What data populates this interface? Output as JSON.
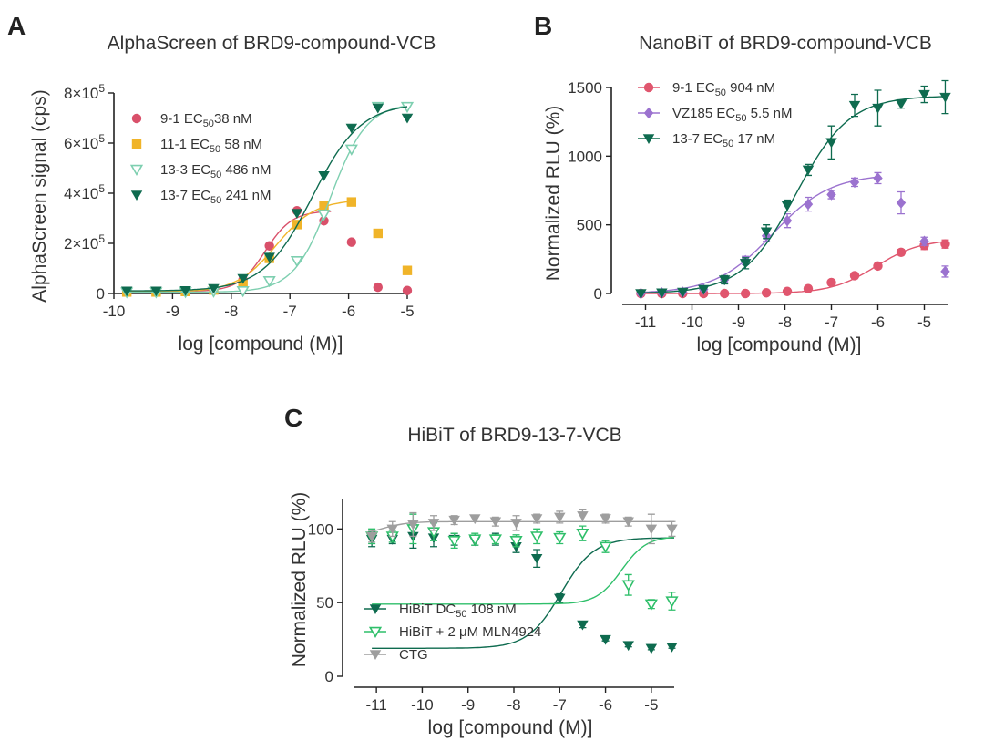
{
  "chart_data": [
    {
      "type": "scatter",
      "panel": "A",
      "title": "AlphaScreen of BRD9-compound-VCB",
      "xlabel": "log [compound (M)]",
      "ylabel": "AlphaScreen signal (cps)",
      "xlim": [
        -10,
        -5
      ],
      "ylim": [
        0,
        800000
      ],
      "xticks": [
        -10,
        -9,
        -8,
        -7,
        -6,
        -5
      ],
      "xtick_labels": [
        "-10",
        "-9",
        "-8",
        "-7",
        "-6",
        "-5"
      ],
      "yticks": [
        0,
        200000,
        400000,
        600000,
        800000
      ],
      "ytick_labels": [
        {
          "base": "0",
          "exp": ""
        },
        {
          "base": "2×10",
          "exp": "5"
        },
        {
          "base": "4×10",
          "exp": "5"
        },
        {
          "base": "6×10",
          "exp": "5"
        },
        {
          "base": "8×10",
          "exp": "5"
        }
      ],
      "grid": false,
      "legend_position": "top-left",
      "series": [
        {
          "name": "9-1 EC50 38 nM",
          "legend": {
            "pre": "9-1 EC",
            "sub": "50",
            "post": "38 nM"
          },
          "color": "#d9506a",
          "marker": "circle",
          "x": [
            -9.78,
            -9.28,
            -8.78,
            -8.3,
            -7.8,
            -7.35,
            -6.88,
            -6.42,
            -5.95,
            -5.5,
            -5.0
          ],
          "y": [
            8000,
            8000,
            10000,
            15000,
            55000,
            190000,
            330000,
            290000,
            205000,
            25000,
            12000
          ],
          "fit": {
            "bottom": 8000,
            "top": 330000,
            "logec50": -7.42,
            "hill": 1.9,
            "xmax": -6.3
          }
        },
        {
          "name": "11-1 EC50 58 nM",
          "legend": {
            "pre": "11-1 EC",
            "sub": "50",
            "post": " 58 nM"
          },
          "color": "#f0b429",
          "marker": "square",
          "x": [
            -9.78,
            -9.28,
            -8.78,
            -8.3,
            -7.8,
            -7.35,
            -6.88,
            -6.42,
            -5.95,
            -5.5,
            -5.0
          ],
          "y": [
            6000,
            6000,
            8000,
            14000,
            35000,
            140000,
            275000,
            350000,
            365000,
            240000,
            92000
          ],
          "fit": {
            "bottom": 6000,
            "top": 375000,
            "logec50": -7.24,
            "hill": 1.3,
            "xmax": -5.95
          }
        },
        {
          "name": "13-3 EC50 486 nM",
          "legend": {
            "pre": "13-3 EC",
            "sub": "50",
            "post": " 486 nM"
          },
          "color": "#7ecfb0",
          "marker": "triangle-down-open",
          "x": [
            -9.78,
            -9.28,
            -8.78,
            -8.3,
            -7.8,
            -7.35,
            -6.88,
            -6.42,
            -5.95,
            -5.5,
            -5.0
          ],
          "y": [
            5000,
            5000,
            6000,
            8000,
            10000,
            50000,
            130000,
            315000,
            575000,
            745000,
            745000
          ],
          "fit": {
            "bottom": 5000,
            "top": 760000,
            "logec50": -6.31,
            "hill": 1.4,
            "xmax": -5.0
          }
        },
        {
          "name": "13-7 EC50 241 nM",
          "legend": {
            "pre": "13-7 EC",
            "sub": "50",
            "post": " 241 nM"
          },
          "color": "#0e6b4f",
          "marker": "triangle-down",
          "x": [
            -9.78,
            -9.28,
            -8.78,
            -8.3,
            -7.8,
            -7.35,
            -6.88,
            -6.42,
            -5.95,
            -5.5,
            -5.0
          ],
          "y": [
            10000,
            10000,
            12000,
            20000,
            60000,
            145000,
            320000,
            470000,
            660000,
            740000,
            700000
          ],
          "fit": {
            "bottom": 10000,
            "top": 760000,
            "logec50": -6.62,
            "hill": 1.05,
            "xmax": -5.0
          }
        }
      ]
    },
    {
      "type": "scatter",
      "panel": "B",
      "title": "NanoBiT of BRD9-compound-VCB",
      "xlabel": "log [compound (M)]",
      "ylabel": "Normalized RLU (%)",
      "xlim": [
        -11.5,
        -4.5
      ],
      "ylim": [
        0,
        1500
      ],
      "xticks": [
        -11,
        -10,
        -9,
        -8,
        -7,
        -6,
        -5
      ],
      "xtick_labels": [
        "-11",
        "-10",
        "-9",
        "-8",
        "-7",
        "-6",
        "-5"
      ],
      "yticks": [
        0,
        500,
        1000,
        1500
      ],
      "ytick_labels": [
        "0",
        "500",
        "1000",
        "1500"
      ],
      "grid": false,
      "legend_position": "top-left",
      "series": [
        {
          "name": "9-1 EC50 904 nM",
          "legend": {
            "pre": "9-1 EC",
            "sub": "50",
            "post": " 904 nM"
          },
          "color": "#e0566e",
          "marker": "circle",
          "x": [
            -11.1,
            -10.65,
            -10.2,
            -9.75,
            -9.3,
            -8.85,
            -8.4,
            -7.95,
            -7.5,
            -7.0,
            -6.5,
            -6.0,
            -5.5,
            -5.0,
            -4.55
          ],
          "y": [
            0,
            0,
            0,
            0,
            0,
            0,
            5,
            15,
            35,
            80,
            130,
            200,
            300,
            350,
            360
          ],
          "err": [
            0,
            0,
            0,
            0,
            0,
            0,
            0,
            0,
            10,
            15,
            15,
            20,
            20,
            30,
            30
          ],
          "fit": {
            "bottom": 0,
            "top": 395,
            "logec50": -6.04,
            "hill": 0.9,
            "xmax": -4.5
          }
        },
        {
          "name": "VZ185 EC50 5.5 nM",
          "legend": {
            "pre": "VZ185 EC",
            "sub": "50",
            "post": " 5.5 nM"
          },
          "color": "#9b72cf",
          "marker": "diamond",
          "x": [
            -11.1,
            -10.65,
            -10.2,
            -9.75,
            -9.3,
            -8.85,
            -8.4,
            -7.95,
            -7.5,
            -7.0,
            -6.5,
            -6.0,
            -5.5,
            -5.0,
            -4.55
          ],
          "y": [
            0,
            5,
            10,
            30,
            100,
            240,
            420,
            530,
            650,
            720,
            810,
            840,
            660,
            380,
            160
          ],
          "err": [
            0,
            0,
            0,
            0,
            20,
            30,
            40,
            50,
            50,
            30,
            30,
            40,
            80,
            30,
            40
          ],
          "fit": {
            "bottom": 0,
            "top": 870,
            "logec50": -8.26,
            "hill": 0.7,
            "xmax": -6.0
          }
        },
        {
          "name": "13-7 EC50 17 nM",
          "legend": {
            "pre": "13-7 EC",
            "sub": "50",
            "post": " 17 nM"
          },
          "color": "#0e6b4f",
          "marker": "triangle-down",
          "x": [
            -11.1,
            -10.65,
            -10.2,
            -9.75,
            -9.3,
            -8.85,
            -8.4,
            -7.95,
            -7.5,
            -7.0,
            -6.5,
            -6.0,
            -5.5,
            -5.0,
            -4.55
          ],
          "y": [
            0,
            5,
            10,
            30,
            100,
            220,
            450,
            640,
            900,
            1100,
            1370,
            1350,
            1380,
            1450,
            1430
          ],
          "err": [
            0,
            0,
            0,
            0,
            30,
            40,
            50,
            40,
            40,
            120,
            80,
            130,
            30,
            60,
            120
          ],
          "fit": {
            "bottom": 0,
            "top": 1440,
            "logec50": -7.77,
            "hill": 0.75,
            "xmax": -4.5
          }
        }
      ]
    },
    {
      "type": "scatter",
      "panel": "C",
      "title": "HiBiT of BRD9-13-7-VCB",
      "xlabel": "log [compound (M)]",
      "ylabel": "Normalized RLU (%)",
      "xlim": [
        -11.5,
        -4.5
      ],
      "ylim": [
        0,
        120
      ],
      "xticks": [
        -11,
        -10,
        -9,
        -8,
        -7,
        -6,
        -5
      ],
      "xtick_labels": [
        "-11",
        "-10",
        "-9",
        "-8",
        "-7",
        "-6",
        "-5"
      ],
      "yticks": [
        0,
        50,
        100
      ],
      "ytick_labels": [
        "0",
        "50",
        "100"
      ],
      "grid": false,
      "legend_position": "bottom-left",
      "series": [
        {
          "name": "HiBiT DC50 108 nM",
          "legend": {
            "pre": "HiBiT DC",
            "sub": "50",
            "post": " 108 nM"
          },
          "color": "#0e6b4f",
          "marker": "triangle-down",
          "x": [
            -11.1,
            -10.65,
            -10.2,
            -9.75,
            -9.3,
            -8.85,
            -8.4,
            -7.95,
            -7.5,
            -7.0,
            -6.5,
            -6.0,
            -5.5,
            -5.0,
            -4.55
          ],
          "y": [
            93,
            93,
            95,
            94,
            93,
            92,
            93,
            88,
            80,
            53,
            35,
            25,
            21,
            19,
            20
          ],
          "err": [
            5,
            3,
            8,
            6,
            4,
            3,
            4,
            4,
            6,
            3,
            2,
            1,
            1,
            1,
            1
          ],
          "fit": {
            "bottom": 19,
            "top": 94,
            "logec50": -6.97,
            "hill": 1.2,
            "xmax": -4.5
          }
        },
        {
          "name": "HiBiT + 2 μM MLN4924",
          "legend": {
            "pre": "HiBiT + 2 μM MLN4924",
            "sub": "",
            "post": ""
          },
          "color": "#2fbf6a",
          "marker": "triangle-down-open",
          "x": [
            -11.1,
            -10.65,
            -10.2,
            -9.75,
            -9.3,
            -8.85,
            -8.4,
            -7.95,
            -7.5,
            -7.0,
            -6.5,
            -6.0,
            -5.5,
            -5.0,
            -4.55
          ],
          "y": [
            95,
            95,
            100,
            98,
            92,
            93,
            93,
            92,
            95,
            94,
            97,
            88,
            62,
            49,
            51
          ],
          "err": [
            5,
            4,
            10,
            6,
            5,
            4,
            3,
            4,
            5,
            4,
            5,
            4,
            7,
            3,
            6
          ],
          "fit": {
            "bottom": 49,
            "top": 95,
            "logec50": -5.65,
            "hill": 1.6,
            "xmax": -4.5
          }
        },
        {
          "name": "CTG",
          "legend": {
            "pre": "CTG",
            "sub": "",
            "post": ""
          },
          "color": "#9e9e9e",
          "marker": "triangle-down",
          "x": [
            -11.1,
            -10.65,
            -10.2,
            -9.75,
            -9.3,
            -8.85,
            -8.4,
            -7.95,
            -7.5,
            -7.0,
            -6.5,
            -6.0,
            -5.5,
            -5.0,
            -4.55
          ],
          "y": [
            95,
            100,
            103,
            104,
            106,
            107,
            105,
            104,
            107,
            108,
            109,
            107,
            105,
            100,
            100
          ],
          "err": [
            4,
            5,
            8,
            5,
            3,
            2,
            3,
            5,
            3,
            4,
            4,
            3,
            3,
            10,
            5
          ],
          "fit": {
            "bottom": 95,
            "top": 105,
            "logec50": -10.9,
            "hill": 1.5,
            "xmax": -4.5
          }
        }
      ]
    }
  ]
}
